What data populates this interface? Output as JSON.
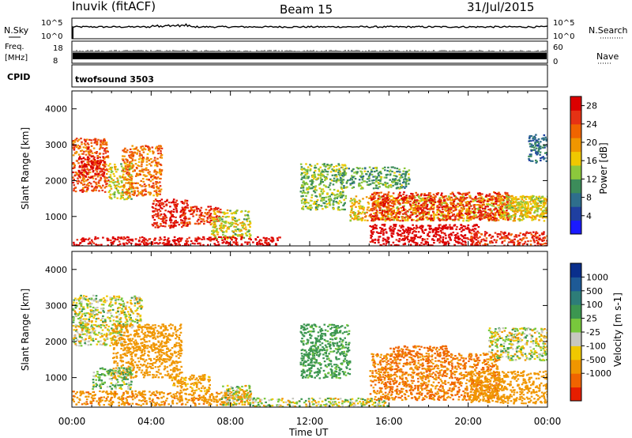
{
  "header": {
    "station": "Inuvik (fitACF)",
    "beam": "Beam 15",
    "date": "31/Jul/2015"
  },
  "summary_panels": {
    "nsky": {
      "label": "N.Sky",
      "ticks": [
        "10^5",
        "10^0"
      ]
    },
    "nsearch": {
      "label": "N.Search",
      "ticks": [
        "10^5",
        "10^0"
      ]
    },
    "freq": {
      "label_line1": "Freq.",
      "label_line2": "[MHz]",
      "ticks": [
        "18",
        "8"
      ]
    },
    "nave": {
      "label": "Nave",
      "ticks": [
        "60",
        "0"
      ]
    },
    "cpid": {
      "label": "CPID",
      "value": "twofsound 3503"
    }
  },
  "x_axis": {
    "title": "Time UT",
    "ticks": [
      "00:00",
      "04:00",
      "08:00",
      "12:00",
      "16:00",
      "20:00",
      "00:00"
    ],
    "range_hours": [
      0,
      24
    ]
  },
  "colors": {
    "power": [
      "#1a1aff",
      "#1f3fa0",
      "#2e6e8c",
      "#3c8c5a",
      "#8cc83c",
      "#f0c800",
      "#f09600",
      "#f06400",
      "#e63214",
      "#dc0000"
    ],
    "velocity": [
      "#0a2f8c",
      "#1e5a96",
      "#2d7d78",
      "#3c9650",
      "#78c83c",
      "#c8c8c0",
      "#f0c800",
      "#f09600",
      "#f06400",
      "#e61e00"
    ]
  },
  "chart_data": [
    {
      "type": "heatmap",
      "name": "power",
      "ylabel": "Slant Range [km]",
      "ylim": [
        180,
        4500
      ],
      "yticks": [
        "1000",
        "2000",
        "3000",
        "4000"
      ],
      "colorbar": {
        "title": "Power [dB]",
        "ticks": [
          "4",
          "8",
          "12",
          "16",
          "20",
          "24",
          "28"
        ],
        "range": [
          0,
          30
        ]
      },
      "regions": [
        {
          "t": [
            0.0,
            1.8
          ],
          "r": [
            1700,
            3200
          ],
          "v": 22
        },
        {
          "t": [
            0.3,
            1.6
          ],
          "r": [
            2100,
            2700
          ],
          "v": 27
        },
        {
          "t": [
            1.8,
            3.0
          ],
          "r": [
            1500,
            2500
          ],
          "v": 14
        },
        {
          "t": [
            2.5,
            4.5
          ],
          "r": [
            1600,
            3000
          ],
          "v": 20
        },
        {
          "t": [
            4.0,
            5.8
          ],
          "r": [
            700,
            1500
          ],
          "v": 26
        },
        {
          "t": [
            5.5,
            7.5
          ],
          "r": [
            800,
            1300
          ],
          "v": 24
        },
        {
          "t": [
            7.0,
            9.0
          ],
          "r": [
            400,
            1200
          ],
          "v": 14
        },
        {
          "t": [
            0.0,
            10.5
          ],
          "r": [
            200,
            450
          ],
          "v": 28
        },
        {
          "t": [
            11.5,
            13.8
          ],
          "r": [
            1200,
            2500
          ],
          "v": 12
        },
        {
          "t": [
            13.5,
            17.0
          ],
          "r": [
            1800,
            2400
          ],
          "v": 10
        },
        {
          "t": [
            14.0,
            24.0
          ],
          "r": [
            900,
            1600
          ],
          "v": 16
        },
        {
          "t": [
            15.0,
            20.5
          ],
          "r": [
            200,
            800
          ],
          "v": 29
        },
        {
          "t": [
            15.0,
            22.0
          ],
          "r": [
            900,
            1700
          ],
          "v": 24
        },
        {
          "t": [
            20.0,
            24.0
          ],
          "r": [
            200,
            600
          ],
          "v": 25
        },
        {
          "t": [
            21.5,
            24.0
          ],
          "r": [
            1000,
            1600
          ],
          "v": 14
        },
        {
          "t": [
            23.0,
            24.0
          ],
          "r": [
            2500,
            3300
          ],
          "v": 6
        }
      ]
    },
    {
      "type": "heatmap",
      "name": "velocity",
      "ylabel": "Slant Range [km]",
      "ylim": [
        180,
        4500
      ],
      "yticks": [
        "1000",
        "2000",
        "3000",
        "4000"
      ],
      "colorbar": {
        "title": "Velocity [m s-1]",
        "ticks": [
          "1000",
          "500",
          "100",
          "25",
          "-25",
          "-100",
          "-500",
          "-1000"
        ],
        "range": [
          -1000,
          1000
        ]
      },
      "regions": [
        {
          "t": [
            0.0,
            3.5
          ],
          "r": [
            2400,
            3300
          ],
          "v": 0
        },
        {
          "t": [
            0.0,
            2.5
          ],
          "r": [
            1900,
            2400
          ],
          "v": 0
        },
        {
          "t": [
            2.0,
            5.5
          ],
          "r": [
            1000,
            2500
          ],
          "v": -300
        },
        {
          "t": [
            1.0,
            3.0
          ],
          "r": [
            700,
            1300
          ],
          "v": 80
        },
        {
          "t": [
            0.0,
            9.0
          ],
          "r": [
            250,
            650
          ],
          "v": -400
        },
        {
          "t": [
            5.0,
            7.0
          ],
          "r": [
            650,
            1100
          ],
          "v": -200
        },
        {
          "t": [
            7.5,
            9.0
          ],
          "r": [
            250,
            800
          ],
          "v": 0
        },
        {
          "t": [
            11.5,
            14.0
          ],
          "r": [
            1000,
            2500
          ],
          "v": 200
        },
        {
          "t": [
            9.0,
            16.0
          ],
          "r": [
            200,
            450
          ],
          "v": 0
        },
        {
          "t": [
            15.0,
            21.5
          ],
          "r": [
            400,
            1700
          ],
          "v": -500
        },
        {
          "t": [
            16.0,
            19.0
          ],
          "r": [
            1600,
            1900
          ],
          "v": -600
        },
        {
          "t": [
            20.0,
            24.0
          ],
          "r": [
            300,
            1200
          ],
          "v": -350
        },
        {
          "t": [
            21.0,
            24.0
          ],
          "r": [
            1500,
            2400
          ],
          "v": 0
        }
      ]
    }
  ]
}
